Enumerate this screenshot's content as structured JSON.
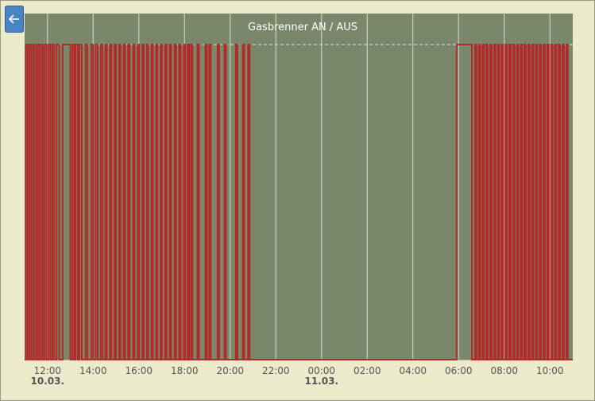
{
  "back_button": {
    "icon": "arrow-left-icon"
  },
  "colors": {
    "background": "#ebebcc",
    "plot_area": "#7a876a",
    "series": "#b22a2a",
    "grid": "#d8dcc8",
    "button": "#4b84c4"
  },
  "chart_data": {
    "type": "line",
    "step": true,
    "title": "Gasbrenner AN / AUS",
    "xlabel": "",
    "ylabel": "",
    "x_ticks": [
      "12:00",
      "14:00",
      "16:00",
      "18:00",
      "20:00",
      "22:00",
      "00:00",
      "02:00",
      "04:00",
      "06:00",
      "08:00",
      "10:00"
    ],
    "date_labels": [
      {
        "at": "12:00",
        "text": "10.03."
      },
      {
        "at": "00:00",
        "text": "11.03."
      }
    ],
    "x_range": [
      "10.03. 11:00",
      "11.03. 11:00"
    ],
    "ylim": [
      0,
      1
    ],
    "grid": true,
    "legend": "none",
    "series": [
      {
        "values_description": "burner state 0 = AUS, 1 = AN",
        "on_intervals": [
          [
            "11:03",
            "11:08"
          ],
          [
            "11:13",
            "11:18"
          ],
          [
            "11:23",
            "11:28"
          ],
          [
            "11:33",
            "11:38"
          ],
          [
            "11:43",
            "11:48"
          ],
          [
            "11:53",
            "11:58"
          ],
          [
            "12:03",
            "12:08"
          ],
          [
            "12:13",
            "12:18"
          ],
          [
            "12:24",
            "12:31"
          ],
          [
            "12:40",
            "13:00"
          ],
          [
            "13:05",
            "13:10"
          ],
          [
            "13:14",
            "13:20"
          ],
          [
            "13:24",
            "13:30"
          ],
          [
            "13:40",
            "13:45"
          ],
          [
            "13:55",
            "14:00"
          ],
          [
            "14:07",
            "14:12"
          ],
          [
            "14:20",
            "14:25"
          ],
          [
            "14:32",
            "14:36"
          ],
          [
            "14:44",
            "14:48"
          ],
          [
            "14:56",
            "15:00"
          ],
          [
            "15:08",
            "15:12"
          ],
          [
            "15:20",
            "15:24"
          ],
          [
            "15:32",
            "15:36"
          ],
          [
            "15:45",
            "15:49"
          ],
          [
            "15:57",
            "16:01"
          ],
          [
            "16:09",
            "16:13"
          ],
          [
            "16:21",
            "16:25"
          ],
          [
            "16:33",
            "16:37"
          ],
          [
            "16:45",
            "16:49"
          ],
          [
            "16:57",
            "17:01"
          ],
          [
            "17:09",
            "17:13"
          ],
          [
            "17:21",
            "17:25"
          ],
          [
            "17:34",
            "17:38"
          ],
          [
            "17:46",
            "17:50"
          ],
          [
            "17:58",
            "18:02"
          ],
          [
            "18:08",
            "18:12"
          ],
          [
            "18:17",
            "18:21"
          ],
          [
            "18:34",
            "18:38"
          ],
          [
            "18:55",
            "18:59"
          ],
          [
            "19:05",
            "19:09"
          ],
          [
            "19:27",
            "19:31"
          ],
          [
            "19:45",
            "19:49"
          ],
          [
            "20:15",
            "20:19"
          ],
          [
            "20:33",
            "20:37"
          ],
          [
            "20:47",
            "20:51"
          ],
          [
            "05:55",
            "06:35"
          ],
          [
            "06:43",
            "06:47"
          ],
          [
            "06:53",
            "06:57"
          ],
          [
            "07:03",
            "07:07"
          ],
          [
            "07:13",
            "07:17"
          ],
          [
            "07:23",
            "07:27"
          ],
          [
            "07:33",
            "07:37"
          ],
          [
            "07:43",
            "07:47"
          ],
          [
            "07:53",
            "07:57"
          ],
          [
            "08:03",
            "08:07"
          ],
          [
            "08:13",
            "08:17"
          ],
          [
            "08:23",
            "08:27"
          ],
          [
            "08:33",
            "08:37"
          ],
          [
            "08:43",
            "08:47"
          ],
          [
            "08:53",
            "08:57"
          ],
          [
            "09:03",
            "09:07"
          ],
          [
            "09:13",
            "09:17"
          ],
          [
            "09:23",
            "09:27"
          ],
          [
            "09:33",
            "09:37"
          ],
          [
            "09:43",
            "09:47"
          ],
          [
            "09:53",
            "09:57"
          ],
          [
            "10:03",
            "10:07"
          ],
          [
            "10:13",
            "10:17"
          ],
          [
            "10:23",
            "10:27"
          ],
          [
            "10:33",
            "10:37"
          ],
          [
            "10:43",
            "10:47"
          ]
        ]
      }
    ]
  }
}
